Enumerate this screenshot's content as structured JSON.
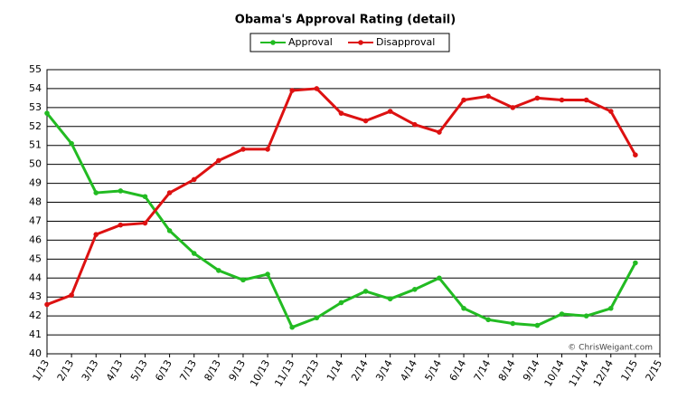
{
  "chart_data": {
    "type": "line",
    "title": "Obama's Approval Rating (detail)",
    "categories": [
      "1/13",
      "2/13",
      "3/13",
      "4/13",
      "5/13",
      "6/13",
      "7/13",
      "8/13",
      "9/13",
      "10/13",
      "11/13",
      "12/13",
      "1/14",
      "2/14",
      "3/14",
      "4/14",
      "5/14",
      "6/14",
      "7/14",
      "8/14",
      "9/14",
      "10/14",
      "11/14",
      "12/14",
      "1/15",
      "2/15"
    ],
    "series": [
      {
        "name": "Approval",
        "color": "#22bb22",
        "values": [
          52.7,
          51.1,
          48.5,
          48.6,
          48.3,
          46.5,
          45.3,
          44.4,
          43.9,
          44.2,
          41.4,
          41.9,
          42.7,
          43.3,
          42.9,
          43.4,
          44.0,
          42.4,
          41.8,
          41.6,
          41.5,
          42.1,
          42.0,
          42.4,
          44.8,
          null
        ]
      },
      {
        "name": "Disapproval",
        "color": "#dd1111",
        "values": [
          42.6,
          43.1,
          46.3,
          46.8,
          46.9,
          48.5,
          49.2,
          50.2,
          50.8,
          50.8,
          53.9,
          54.0,
          52.7,
          52.3,
          52.8,
          52.1,
          51.7,
          53.4,
          53.6,
          53.0,
          53.5,
          53.4,
          53.4,
          52.8,
          50.5,
          null
        ]
      }
    ],
    "ylim": [
      40,
      55
    ],
    "yticks": [
      40,
      41,
      42,
      43,
      44,
      45,
      46,
      47,
      48,
      49,
      50,
      51,
      52,
      53,
      54,
      55
    ],
    "grid": true,
    "legend": "top",
    "annotation": "© ChrisWeigant.com"
  }
}
